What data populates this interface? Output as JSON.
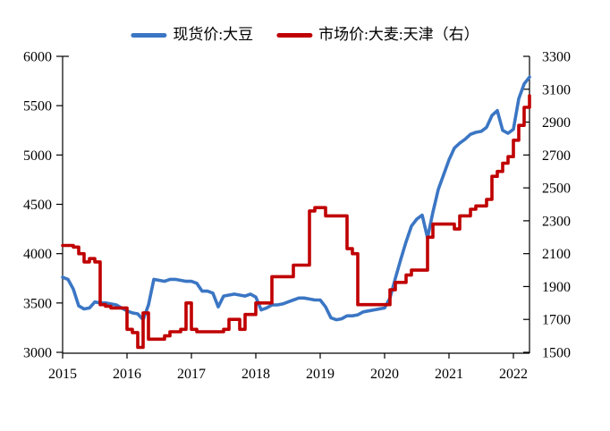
{
  "chart_data": {
    "type": "line",
    "title": "",
    "legend_position": "top-center",
    "grid": false,
    "x_min": 2015,
    "x_max": 2022.25,
    "x_ticks": [
      2015,
      2016,
      2017,
      2018,
      2019,
      2020,
      2021,
      2022
    ],
    "left_axis": {
      "min": 3000,
      "max": 6000,
      "ticks": [
        3000,
        3500,
        4000,
        4500,
        5000,
        5500,
        6000
      ]
    },
    "right_axis": {
      "min": 1500,
      "max": 3300,
      "ticks": [
        1500,
        1700,
        1900,
        2100,
        2300,
        2500,
        2700,
        2900,
        3100,
        3300
      ]
    },
    "axis_color": "#000000",
    "x": [
      2015.0,
      2015.0833,
      2015.1667,
      2015.25,
      2015.3333,
      2015.4167,
      2015.5,
      2015.5833,
      2015.6667,
      2015.75,
      2015.8333,
      2015.9167,
      2016.0,
      2016.0833,
      2016.1667,
      2016.25,
      2016.3333,
      2016.4167,
      2016.5,
      2016.5833,
      2016.6667,
      2016.75,
      2016.8333,
      2016.9167,
      2017.0,
      2017.0833,
      2017.1667,
      2017.25,
      2017.3333,
      2017.4167,
      2017.5,
      2017.5833,
      2017.6667,
      2017.75,
      2017.8333,
      2017.9167,
      2018.0,
      2018.0833,
      2018.1667,
      2018.25,
      2018.3333,
      2018.4167,
      2018.5,
      2018.5833,
      2018.6667,
      2018.75,
      2018.8333,
      2018.9167,
      2019.0,
      2019.0833,
      2019.1667,
      2019.25,
      2019.3333,
      2019.4167,
      2019.5,
      2019.5833,
      2019.6667,
      2019.75,
      2019.8333,
      2019.9167,
      2020.0,
      2020.0833,
      2020.1667,
      2020.25,
      2020.3333,
      2020.4167,
      2020.5,
      2020.5833,
      2020.6667,
      2020.75,
      2020.8333,
      2020.9167,
      2021.0,
      2021.0833,
      2021.1667,
      2021.25,
      2021.3333,
      2021.4167,
      2021.5,
      2021.5833,
      2021.6667,
      2021.75,
      2021.8333,
      2021.9167,
      2022.0,
      2022.0833,
      2022.1667,
      2022.25
    ],
    "series": [
      {
        "name": "现货价:大豆",
        "axis": "left",
        "color": "#3B76C4",
        "stroke_width": 3.6,
        "style": "line",
        "values": [
          3760,
          3740,
          3640,
          3470,
          3440,
          3450,
          3510,
          3500,
          3500,
          3490,
          3480,
          3450,
          3420,
          3400,
          3390,
          3330,
          3480,
          3740,
          3730,
          3720,
          3740,
          3740,
          3730,
          3720,
          3720,
          3700,
          3620,
          3620,
          3600,
          3460,
          3570,
          3580,
          3590,
          3580,
          3570,
          3590,
          3560,
          3430,
          3450,
          3480,
          3480,
          3490,
          3510,
          3530,
          3550,
          3550,
          3540,
          3530,
          3530,
          3460,
          3350,
          3330,
          3340,
          3370,
          3370,
          3380,
          3410,
          3420,
          3430,
          3440,
          3450,
          3550,
          3750,
          3940,
          4120,
          4280,
          4350,
          4390,
          4160,
          4420,
          4650,
          4800,
          4950,
          5070,
          5120,
          5160,
          5210,
          5230,
          5240,
          5280,
          5400,
          5450,
          5250,
          5220,
          5260,
          5570,
          5720,
          5790
        ]
      },
      {
        "name": "市场价:大麦:天津（右）",
        "axis": "right",
        "color": "#C00000",
        "stroke_width": 3.6,
        "style": "step",
        "values": [
          2150,
          2150,
          2140,
          2100,
          2050,
          2070,
          2050,
          1790,
          1780,
          1770,
          1770,
          1770,
          1640,
          1620,
          1530,
          1740,
          1580,
          1580,
          1580,
          1600,
          1625,
          1625,
          1640,
          1800,
          1640,
          1625,
          1625,
          1625,
          1625,
          1625,
          1640,
          1700,
          1700,
          1640,
          1730,
          1730,
          1800,
          1800,
          1800,
          1960,
          1960,
          1960,
          1960,
          2030,
          2030,
          2030,
          2360,
          2380,
          2380,
          2330,
          2330,
          2330,
          2330,
          2130,
          2100,
          1790,
          1790,
          1790,
          1790,
          1790,
          1790,
          1880,
          1925,
          1925,
          1970,
          2000,
          2000,
          2000,
          2200,
          2280,
          2280,
          2280,
          2280,
          2250,
          2330,
          2330,
          2370,
          2390,
          2390,
          2430,
          2570,
          2600,
          2650,
          2690,
          2790,
          2880,
          2990,
          3060
        ]
      }
    ]
  }
}
